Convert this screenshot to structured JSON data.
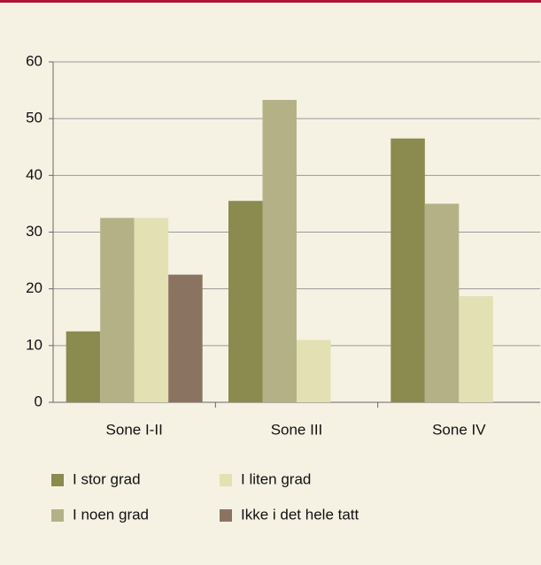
{
  "chart_data": {
    "type": "bar",
    "categories": [
      "Sone I-II",
      "Sone III",
      "Sone IV"
    ],
    "series": [
      {
        "name": "I stor grad",
        "color": "#8b8a4f",
        "values": [
          12.5,
          35.5,
          46.5
        ]
      },
      {
        "name": "I noen grad",
        "color": "#b5b187",
        "values": [
          32.5,
          53.3,
          35
        ]
      },
      {
        "name": "I liten grad",
        "color": "#e3e0b4",
        "values": [
          32.5,
          11,
          18.7
        ]
      },
      {
        "name": "Ikke i det hele tatt",
        "color": "#8b7362",
        "values": [
          22.5,
          null,
          null
        ]
      }
    ],
    "ylim": [
      0,
      60
    ],
    "yticks": [
      0,
      10,
      20,
      30,
      40,
      50,
      60
    ],
    "grid": true
  }
}
